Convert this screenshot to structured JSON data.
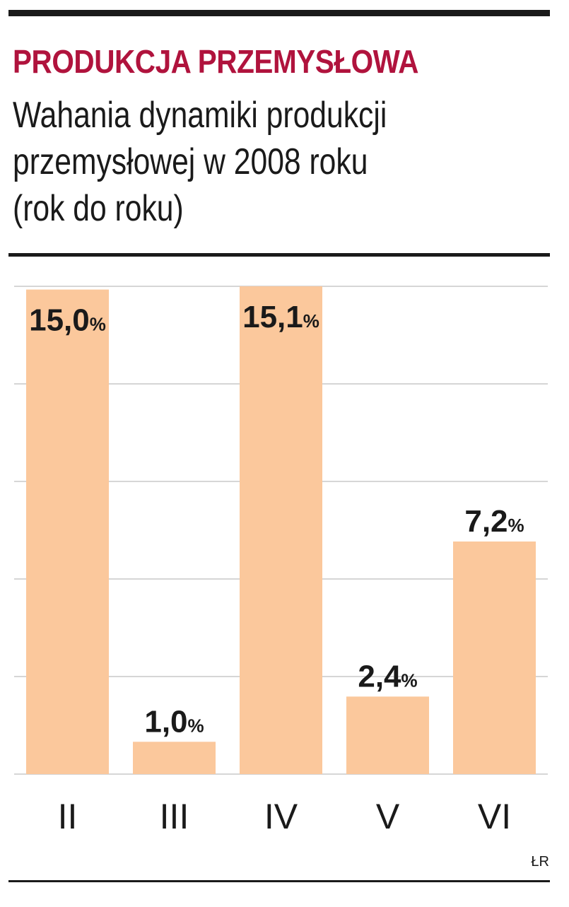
{
  "header": {
    "title": "PRODUKCJA PRZEMYSŁOWA",
    "subtitle_line1": "Wahania dynamiki produkcji",
    "subtitle_line2": "przemysłowej w 2008 roku",
    "subtitle_line3": "(rok do roku)"
  },
  "credit": "ŁR",
  "colors": {
    "bar": "#fbc89c",
    "title": "#b0133d",
    "grid": "#c8c8c8",
    "text": "#1a1a1a"
  },
  "chart_data": {
    "type": "bar",
    "categories": [
      "II",
      "III",
      "IV",
      "V",
      "VI"
    ],
    "values": [
      15.0,
      1.0,
      15.1,
      2.4,
      7.2
    ],
    "value_labels": [
      "15,0",
      "1,0",
      "15,1",
      "2,4",
      "7,2"
    ],
    "unit": "%",
    "ylim": [
      0,
      15.1
    ],
    "grid": true,
    "title": "PRODUKCJA PRZEMYSŁOWA",
    "xlabel": "",
    "ylabel": ""
  }
}
